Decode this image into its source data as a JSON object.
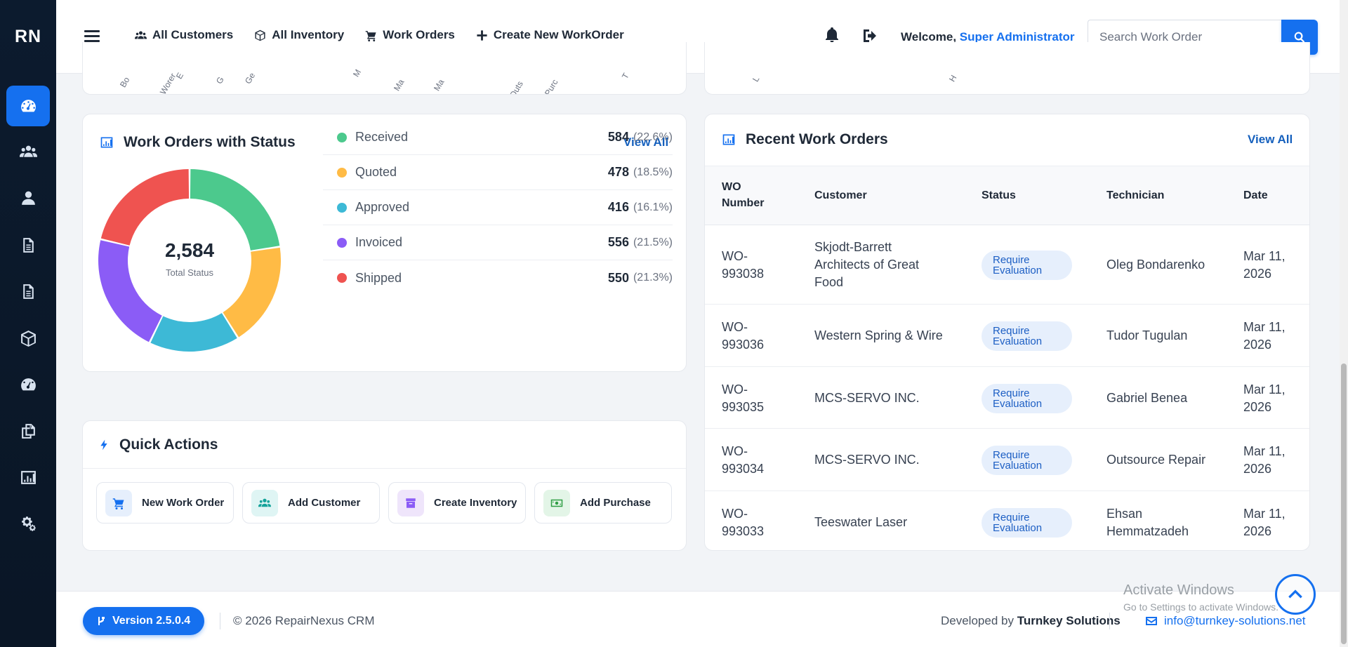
{
  "sidebar": {
    "logo": "RN",
    "items": [
      {
        "icon": "dashboard-icon",
        "active": true
      },
      {
        "icon": "users-icon",
        "active": false
      },
      {
        "icon": "user-icon",
        "active": false
      },
      {
        "icon": "document-icon",
        "active": false
      },
      {
        "icon": "document-icon",
        "active": false
      },
      {
        "icon": "box-icon",
        "active": false
      },
      {
        "icon": "gauge-icon",
        "active": false
      },
      {
        "icon": "copy-icon",
        "active": false
      },
      {
        "icon": "chart-icon",
        "active": false
      },
      {
        "icon": "gears-icon",
        "active": false
      }
    ]
  },
  "header": {
    "nav": [
      {
        "label": "All Customers",
        "icon": "users-icon"
      },
      {
        "label": "All Inventory",
        "icon": "box-icon"
      },
      {
        "label": "Work Orders",
        "icon": "cart-icon"
      },
      {
        "label": "Create New WorkOrder",
        "icon": "plus-icon"
      }
    ],
    "welcome_prefix": "Welcome,",
    "user_name": "Super Administrator",
    "search_placeholder": "Search Work Order"
  },
  "status_card": {
    "title": "Work Orders with Status",
    "view_all": "View All",
    "total": "2,584",
    "total_label": "Total Status",
    "items": [
      {
        "label": "Received",
        "value": "584",
        "pct": "(22.6%)",
        "color": "#4cc98d",
        "count": 584
      },
      {
        "label": "Quoted",
        "value": "478",
        "pct": "(18.5%)",
        "color": "#ffbb45",
        "count": 478
      },
      {
        "label": "Approved",
        "value": "416",
        "pct": "(16.1%)",
        "color": "#3db9d6",
        "count": 416
      },
      {
        "label": "Invoiced",
        "value": "556",
        "pct": "(21.5%)",
        "color": "#8b5cf6",
        "count": 556
      },
      {
        "label": "Shipped",
        "value": "550",
        "pct": "(21.3%)",
        "color": "#ef5350",
        "count": 550
      }
    ]
  },
  "quick_actions": {
    "title": "Quick Actions",
    "buttons": [
      {
        "label": "New Work Order",
        "icon": "cart-icon",
        "bg": "#e6effc",
        "fg": "#1570ef"
      },
      {
        "label": "Add Customer",
        "icon": "users-icon",
        "bg": "#dff5f4",
        "fg": "#14a39a"
      },
      {
        "label": "Create Inventory",
        "icon": "archive-icon",
        "bg": "#efe5fb",
        "fg": "#8b5cf6"
      },
      {
        "label": "Add Purchase",
        "icon": "money-icon",
        "bg": "#e3f5e7",
        "fg": "#2f9e44"
      }
    ]
  },
  "recent": {
    "title": "Recent Work Orders",
    "view_all": "View All",
    "columns": {
      "wo_line1": "WO",
      "wo_line2": "Number",
      "customer": "Customer",
      "status": "Status",
      "technician": "Technician",
      "date": "Date"
    },
    "rows": [
      {
        "wo1": "WO-",
        "wo2": "993038",
        "cust": [
          "Skjodt-Barrett",
          "Architects of Great",
          "Food"
        ],
        "status1": "Require",
        "status2": "Evaluation",
        "tech": [
          "Oleg Bondarenko"
        ],
        "date1": "Mar 11,",
        "date2": "2026"
      },
      {
        "wo1": "WO-",
        "wo2": "993036",
        "cust": [
          "Western Spring & Wire"
        ],
        "status1": "Require",
        "status2": "Evaluation",
        "tech": [
          "Tudor Tugulan"
        ],
        "date1": "Mar 11,",
        "date2": "2026"
      },
      {
        "wo1": "WO-",
        "wo2": "993035",
        "cust": [
          "MCS-SERVO INC."
        ],
        "status1": "Require",
        "status2": "Evaluation",
        "tech": [
          "Gabriel Benea"
        ],
        "date1": "Mar 11,",
        "date2": "2026"
      },
      {
        "wo1": "WO-",
        "wo2": "993034",
        "cust": [
          "MCS-SERVO INC."
        ],
        "status1": "Require",
        "status2": "Evaluation",
        "tech": [
          "Outsource Repair"
        ],
        "date1": "Mar 11,",
        "date2": "2026"
      },
      {
        "wo1": "WO-",
        "wo2": "993033",
        "cust": [
          "Teeswater Laser"
        ],
        "status1": "Require",
        "status2": "Evaluation",
        "tech": [
          "Ehsan",
          "Hemmatzadeh"
        ],
        "date1": "Mar 11,",
        "date2": "2026"
      }
    ]
  },
  "footer": {
    "version": "Version 2.5.0.4",
    "copyright": "© 2026 RepairNexus CRM",
    "developed_by": "Developed by",
    "company": "Turnkey Solutions",
    "email": "info@turnkey-solutions.net"
  },
  "overlay": {
    "activate_title": "Activate Windows",
    "activate_sub": "Go to Settings to activate Windows."
  },
  "cut_chart_labels_left": [
    "Bo",
    "Worer",
    "E",
    "G",
    "Ge",
    "M",
    "Ma",
    "Ma",
    "Outs",
    "Purc",
    "T"
  ],
  "cut_chart_labels_right": [
    "L",
    "H"
  ]
}
